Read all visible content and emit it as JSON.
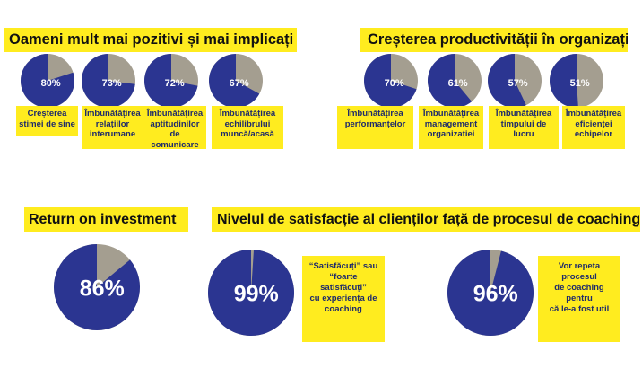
{
  "colors": {
    "accent": "#ffec1f",
    "pie_main": "#2b3591",
    "pie_rest": "#a49e90",
    "label_text": "#1e2a6b"
  },
  "sections": {
    "positive": "Oameni mult mai pozitivi și mai implicați",
    "productivity": "Creșterea productivității în organizații",
    "roi": "Return on investment",
    "satisfaction": "Nivelul de satisfacție al clienților față de procesul de coaching"
  },
  "chart_data": [
    {
      "type": "pie",
      "title": "Oameni mult mai pozitivi și mai implicați",
      "categories": [
        "Creșterea stimei de sine",
        "Îmbunătățirea relațiilor interumane",
        "Îmbunătățirea aptitudinilor de comunicare",
        "Îmbunătățirea echilibrului muncă/acasă"
      ],
      "values": [
        80,
        73,
        72,
        67
      ],
      "value_labels": [
        "80%",
        "73%",
        "72%",
        "67%"
      ],
      "label_lines": [
        [
          "Creșterea",
          "stimei de sine"
        ],
        [
          "Îmbunătățirea",
          "relațiilor",
          "interumane"
        ],
        [
          "Îmbunătățirea",
          "aptitudinilor",
          "de comunicare"
        ],
        [
          "Îmbunătățirea",
          "echilibrului",
          "muncă/acasă"
        ]
      ]
    },
    {
      "type": "pie",
      "title": "Creșterea productivității în organizații",
      "categories": [
        "Îmbunătățirea performanțelor",
        "Îmbunătățirea management organizației",
        "Îmbunătățirea timpului de lucru",
        "Îmbunătățirea eficienței echipelor"
      ],
      "values": [
        70,
        61,
        57,
        51
      ],
      "value_labels": [
        "70%",
        "61%",
        "57%",
        "51%"
      ],
      "label_lines": [
        [
          "Îmbunătățirea",
          "performanțelor"
        ],
        [
          "Îmbunătățirea",
          "management",
          "organizației"
        ],
        [
          "Îmbunătățirea",
          "timpului de",
          "lucru"
        ],
        [
          "Îmbunătățirea",
          "eficienței",
          "echipelor"
        ]
      ]
    },
    {
      "type": "pie",
      "title": "Return on investment",
      "values": [
        86
      ],
      "value_labels": [
        "86%"
      ]
    },
    {
      "type": "pie",
      "title": "Nivelul de satisfacție al clienților față de procesul de coaching",
      "categories": [
        "“Satisfăcuți” sau “foarte satisfăcuți” cu experiența de coaching",
        "Vor repeta procesul de coaching pentru că le-a fost util"
      ],
      "values": [
        99,
        96
      ],
      "value_labels": [
        "99%",
        "96%"
      ],
      "label_lines": [
        [
          "“Satisfăcuți” sau",
          "“foarte satisfăcuți”",
          "cu experiența de",
          "coaching"
        ],
        [
          "Vor repeta procesul",
          "de coaching pentru",
          "că le-a fost util"
        ]
      ]
    }
  ]
}
